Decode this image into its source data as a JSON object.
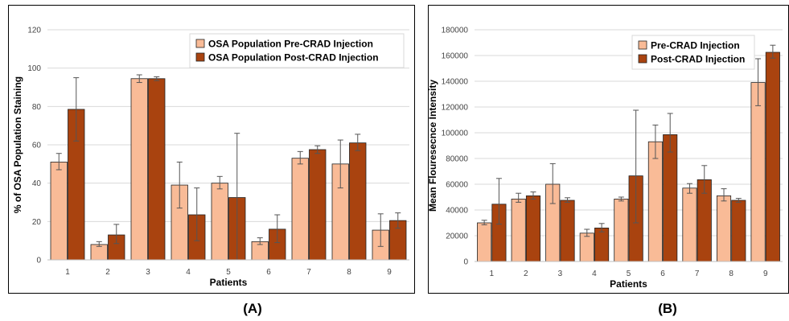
{
  "colors": {
    "pre": "#F9BB97",
    "post": "#A9430F",
    "grid": "#d9d9d9",
    "error": "#555555"
  },
  "captions": {
    "a": "(A)",
    "b": "(B)"
  },
  "chart_data": [
    {
      "type": "bar",
      "categories": [
        "1",
        "2",
        "3",
        "4",
        "5",
        "6",
        "7",
        "8",
        "9"
      ],
      "xlabel": "Patients",
      "ylabel": "% of OSA Population Staining",
      "ylim": [
        0,
        120
      ],
      "yticks": [
        0,
        20,
        40,
        60,
        80,
        100,
        120
      ],
      "grid": true,
      "legend": "top-right",
      "series": [
        {
          "name": "OSA Population Pre-CRAD Injection",
          "values": [
            51,
            8,
            94.5,
            39,
            40,
            9.5,
            53,
            50,
            15.5
          ],
          "error": [
            [
              47,
              55.5
            ],
            [
              7,
              9.5
            ],
            [
              92.5,
              96.5
            ],
            [
              27,
              51
            ],
            [
              37,
              43.5
            ],
            [
              8,
              11.5
            ],
            [
              50,
              56.5
            ],
            [
              37.5,
              62.5
            ],
            [
              7,
              24
            ]
          ]
        },
        {
          "name": "OSA Population Post-CRAD Injection",
          "values": [
            78.5,
            13,
            94.5,
            23.5,
            32.5,
            16,
            57.5,
            61,
            20.5
          ],
          "error": [
            [
              62,
              95
            ],
            [
              8.5,
              18.5
            ],
            [
              93.5,
              95.5
            ],
            [
              10,
              37.5
            ],
            [
              0,
              66
            ],
            [
              9,
              23.5
            ],
            [
              55.5,
              59.5
            ],
            [
              57,
              65.5
            ],
            [
              16.5,
              24.5
            ]
          ]
        }
      ]
    },
    {
      "type": "bar",
      "categories": [
        "1",
        "2",
        "3",
        "4",
        "5",
        "6",
        "7",
        "8",
        "9"
      ],
      "xlabel": "Patients",
      "ylabel": "Mean Flouresecnce Intensity",
      "ylim": [
        0,
        180000
      ],
      "yticks": [
        0,
        20000,
        40000,
        60000,
        80000,
        100000,
        120000,
        140000,
        160000,
        180000
      ],
      "grid": true,
      "legend": "top-right",
      "series": [
        {
          "name": "Pre-CRAD Injection",
          "values": [
            30000,
            48500,
            60000,
            22000,
            48500,
            93000,
            57000,
            51000,
            139000
          ],
          "error": [
            [
              28500,
              32000
            ],
            [
              46000,
              53000
            ],
            [
              45000,
              76000
            ],
            [
              19500,
              25000
            ],
            [
              47000,
              50000
            ],
            [
              80000,
              106000
            ],
            [
              53000,
              60500
            ],
            [
              47000,
              56500
            ],
            [
              121000,
              157500
            ]
          ]
        },
        {
          "name": "Post-CRAD Injection",
          "values": [
            44500,
            51000,
            47500,
            26000,
            66500,
            98500,
            63500,
            47500,
            162500
          ],
          "error": [
            [
              29000,
              64500
            ],
            [
              48500,
              54000
            ],
            [
              46000,
              49500
            ],
            [
              23000,
              29500
            ],
            [
              30000,
              117500
            ],
            [
              85000,
              115000
            ],
            [
              53000,
              74500
            ],
            [
              46000,
              49000
            ],
            [
              158000,
              168000
            ]
          ]
        }
      ]
    }
  ]
}
